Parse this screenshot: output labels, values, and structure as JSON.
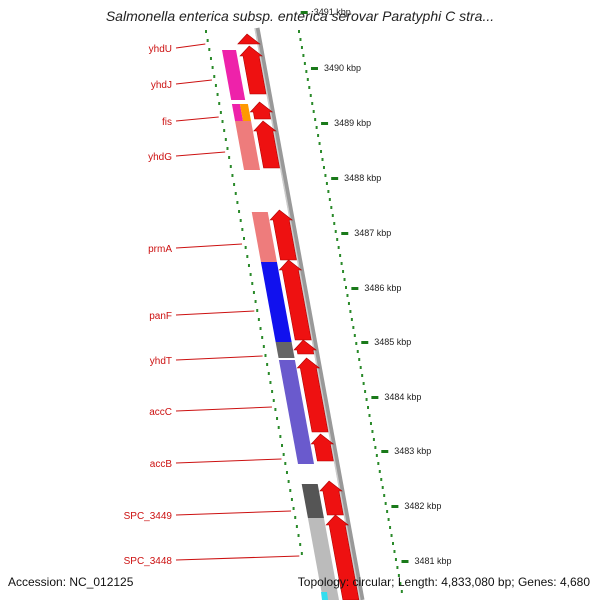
{
  "title": "Salmonella enterica subsp. enterica serovar Paratyphi C stra...",
  "footer": {
    "accession": "Accession: NC_012125",
    "stats": "Topology: circular; Length: 4,833,080 bp; Genes: 4,680"
  },
  "map": {
    "colors": {
      "backbone": "#888888",
      "cds_arrow": "#ee1111",
      "label": "#cc1111",
      "dots": "#2a8a2a",
      "tick": "#1a7a1a"
    },
    "kbp_ticks": [
      "3491 kbp",
      "3490 kbp",
      "3489 kbp",
      "3488 kbp",
      "3487 kbp",
      "3486 kbp",
      "3485 kbp",
      "3484 kbp",
      "3483 kbp",
      "3482 kbp",
      "3481 kbp"
    ],
    "genes": [
      {
        "name": "yhdU",
        "color": "#ff1f2f"
      },
      {
        "name": "yhdJ",
        "color": "#ee22aa"
      },
      {
        "name": "fis",
        "color": "#ee22aa"
      },
      {
        "name": "yhdG",
        "color": "#ee7c7c"
      },
      {
        "name": "prmA",
        "color": "#ee7c7c"
      },
      {
        "name": "panF",
        "color": "#1111ee"
      },
      {
        "name": "yhdT",
        "color": "#666666"
      },
      {
        "name": "accC",
        "color": "#6a5acd"
      },
      {
        "name": "accB",
        "color": "#6a5acd"
      },
      {
        "name": "SPC_3449",
        "color": "#555555"
      },
      {
        "name": "SPC_3448",
        "color": "#bbbbbb"
      }
    ]
  }
}
